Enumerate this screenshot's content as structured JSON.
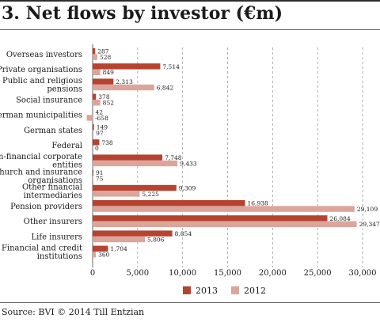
{
  "title": "3. Net flows by investor (€m)",
  "source": "Source: BVI © 2014 Till Entzian",
  "colors": {
    "s2013": "#b5432f",
    "s2012": "#dca59b",
    "grid": "#9a9a9a",
    "text": "#1a1a1a"
  },
  "chart_data": {
    "type": "bar",
    "orientation": "horizontal",
    "categories": [
      [
        "Overseas investors"
      ],
      [
        "Private organisations"
      ],
      [
        "Public and religious",
        "pensions"
      ],
      [
        "Social insurance"
      ],
      [
        "German municipalities"
      ],
      [
        "German states"
      ],
      [
        "Federal"
      ],
      [
        "Non-financial corporate",
        "entities"
      ],
      [
        "Church and insurance",
        "organisations"
      ],
      [
        "Other financial",
        "intermediaries"
      ],
      [
        "Pension providers"
      ],
      [
        "Other insurers"
      ],
      [
        "Life insurers"
      ],
      [
        "Financial and credit",
        "institutions"
      ]
    ],
    "series": [
      {
        "name": "2013",
        "values": [
          287,
          7514,
          2313,
          378,
          42,
          149,
          738,
          7748,
          91,
          9309,
          16938,
          26084,
          8854,
          1704
        ],
        "labels": [
          "287",
          "7,514",
          "2,313",
          "378",
          "42",
          "149",
          "738",
          "7,748",
          "91",
          "9,309",
          "16,938",
          "26,084",
          "8,854",
          "1,704"
        ]
      },
      {
        "name": "2012",
        "values": [
          528,
          849,
          6842,
          852,
          -658,
          97,
          0,
          9433,
          75,
          5225,
          29109,
          29347,
          5806,
          360
        ],
        "labels": [
          "528",
          "849",
          "6,842",
          "852",
          "-658",
          "97",
          "0",
          "9,433",
          "75",
          "5,225",
          "29,109",
          "29,347",
          "5,806",
          "360"
        ]
      }
    ],
    "xlim": [
      -658,
      30000
    ],
    "xticks": [
      0,
      5000,
      10000,
      15000,
      20000,
      25000,
      30000
    ],
    "xtick_labels": [
      "0",
      "5,000",
      "10,000",
      "15,000",
      "20,000",
      "25,000",
      "30,000"
    ],
    "grid": "vertical dashed",
    "legend": "bottom-center"
  }
}
